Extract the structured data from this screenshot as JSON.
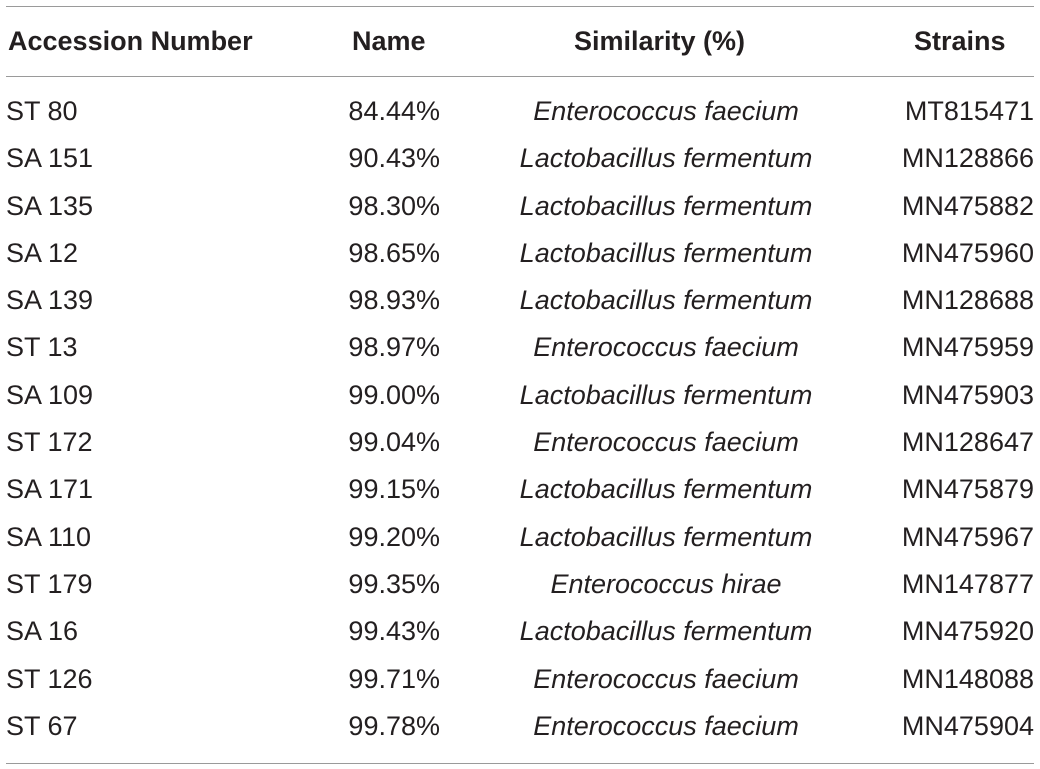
{
  "table": {
    "headers": [
      "Accession Number",
      "Name",
      "Similarity (%)",
      "Strains"
    ],
    "rows": [
      [
        "ST 80",
        "84.44%",
        "Enterococcus faecium",
        "MT815471"
      ],
      [
        "SA 151",
        "90.43%",
        "Lactobacillus fermentum",
        "MN128866"
      ],
      [
        "SA 135",
        "98.30%",
        "Lactobacillus fermentum",
        "MN475882"
      ],
      [
        "SA 12",
        "98.65%",
        "Lactobacillus fermentum",
        "MN475960"
      ],
      [
        "SA 139",
        "98.93%",
        "Lactobacillus fermentum",
        "MN128688"
      ],
      [
        "ST 13",
        "98.97%",
        "Enterococcus faecium",
        "MN475959"
      ],
      [
        "SA 109",
        "99.00%",
        "Lactobacillus fermentum",
        "MN475903"
      ],
      [
        "ST 172",
        "99.04%",
        "Enterococcus faecium",
        "MN128647"
      ],
      [
        "SA 171",
        "99.15%",
        "Lactobacillus fermentum",
        "MN475879"
      ],
      [
        "SA 110",
        "99.20%",
        "Lactobacillus fermentum",
        "MN475967"
      ],
      [
        "ST 179",
        "99.35%",
        "Enterococcus hirae",
        "MN147877"
      ],
      [
        "SA 16",
        "99.43%",
        "Lactobacillus fermentum",
        "MN475920"
      ],
      [
        "ST 126",
        "99.71%",
        "Enterococcus faecium",
        "MN148088"
      ],
      [
        "ST 67",
        "99.78%",
        "Enterococcus faecium",
        "MN475904"
      ]
    ]
  }
}
